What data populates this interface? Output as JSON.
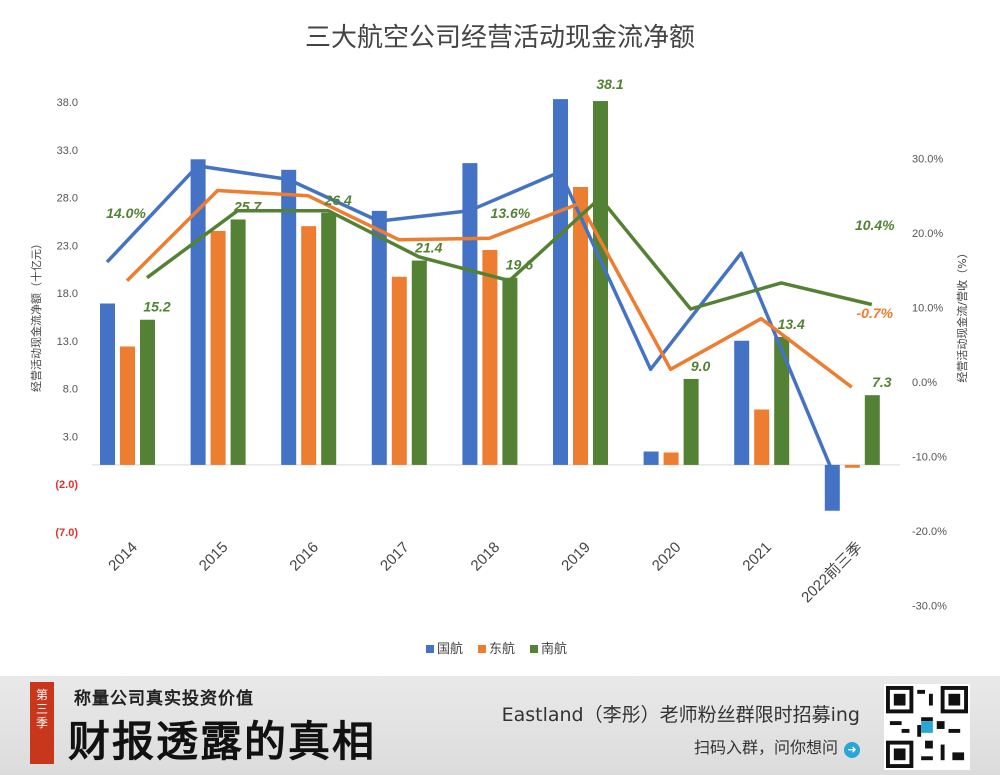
{
  "chart_data": {
    "type": "bar",
    "title": "三大航空公司经营活动现金流净额",
    "categories": [
      "2014",
      "2015",
      "2016",
      "2017",
      "2018",
      "2019",
      "2020",
      "2021",
      "2022前三季"
    ],
    "ylabel": "经营活动现金流净额（十亿元）",
    "y2label": "经营活动现金流/营收（%）",
    "ylim": [
      -7,
      40.5
    ],
    "yticks": [
      {
        "v": 38,
        "label": "38.0"
      },
      {
        "v": 33,
        "label": "33.0"
      },
      {
        "v": 28,
        "label": "28.0"
      },
      {
        "v": 23,
        "label": "23.0"
      },
      {
        "v": 18,
        "label": "18.0"
      },
      {
        "v": 13,
        "label": "13.0"
      },
      {
        "v": 8,
        "label": "8.0"
      },
      {
        "v": 3,
        "label": "3.0"
      },
      {
        "v": -2,
        "label": "(2.0)"
      },
      {
        "v": -7,
        "label": "(7.0)"
      }
    ],
    "y2lim": [
      -30,
      30
    ],
    "y2ticks": [
      "30.0%",
      "20.0%",
      "10.0%",
      "0.0%",
      "-10.0%",
      "-20.0%",
      "-30.0%"
    ],
    "series": [
      {
        "name": "国航",
        "color": "#4472c4",
        "values": [
          16.9,
          32.0,
          30.9,
          26.6,
          31.6,
          38.3,
          1.4,
          13.0,
          -4.8
        ]
      },
      {
        "name": "东航",
        "color": "#ed7d31",
        "values": [
          12.4,
          24.5,
          25.0,
          19.7,
          22.5,
          29.1,
          1.3,
          5.8,
          -0.3
        ]
      },
      {
        "name": "南航",
        "color": "#548235",
        "values": [
          15.2,
          25.7,
          26.4,
          21.4,
          19.6,
          38.1,
          9.0,
          13.4,
          7.3
        ]
      }
    ],
    "ratio_series": [
      {
        "name": "国航",
        "color": "#4472c4",
        "values": [
          16.1,
          29.0,
          27.2,
          21.6,
          23.0,
          28.2,
          1.7,
          17.3,
          -11.8
        ]
      },
      {
        "name": "东航",
        "color": "#ed7d31",
        "values": [
          13.6,
          25.7,
          25.0,
          19.1,
          19.3,
          24.0,
          1.7,
          8.5,
          -0.7
        ]
      },
      {
        "name": "南航",
        "color": "#548235",
        "values": [
          14.0,
          23.0,
          23.0,
          16.8,
          13.6,
          24.7,
          9.8,
          13.3,
          10.4
        ]
      }
    ],
    "data_labels": [
      "15.2",
      "25.7",
      "26.4",
      "21.4",
      "19.6",
      "38.1",
      "9.0",
      "13.4",
      "7.3"
    ],
    "pct_labels": {
      "first": "14.0%",
      "2018": "13.6%",
      "last_green": "10.4%",
      "last_orange": "-0.7%"
    },
    "legend": [
      "国航",
      "东航",
      "南航"
    ]
  },
  "banner": {
    "badge": [
      "第",
      "三",
      "季"
    ],
    "subtitle": "称量公司真实投资价值",
    "headline": "财报透露的真相",
    "promo": "Eastland（李彤）老师粉丝群限时招募ing",
    "scan_text": "扫码入群，问你想问",
    "arrow": "➜"
  }
}
